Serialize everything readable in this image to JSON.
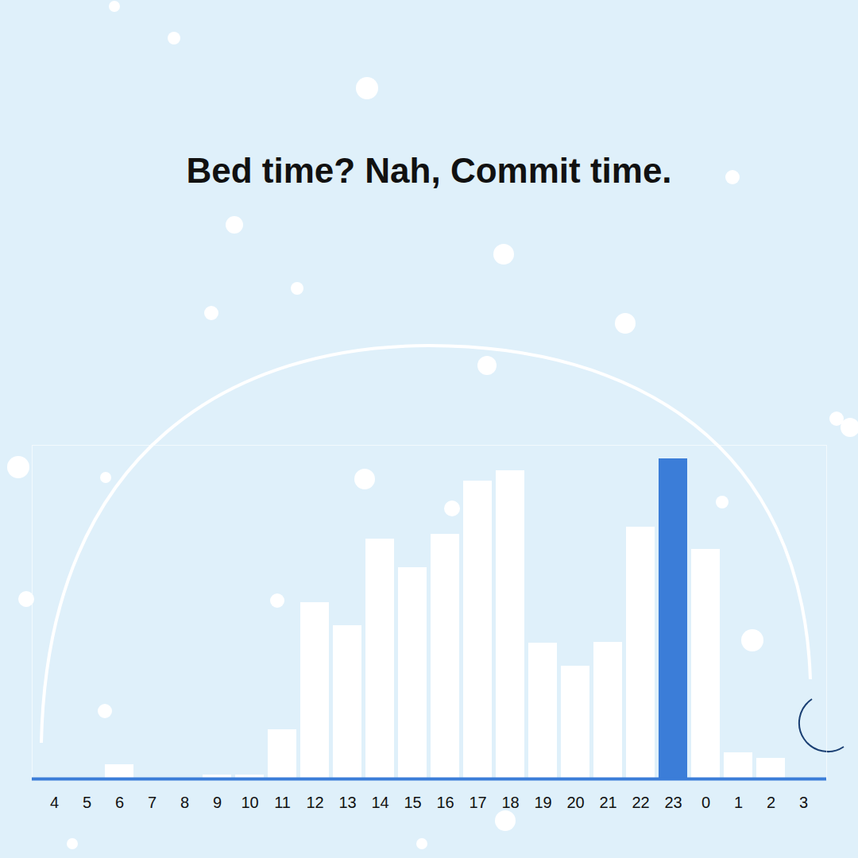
{
  "chart_data": {
    "type": "bar",
    "title": "Bed time? Nah, Commit time.",
    "categories": [
      4,
      5,
      6,
      7,
      8,
      9,
      10,
      11,
      12,
      13,
      14,
      15,
      16,
      17,
      18,
      19,
      20,
      21,
      22,
      23,
      0,
      1,
      2,
      3
    ],
    "values": [
      0,
      0,
      18,
      0,
      0,
      5,
      5,
      62,
      222,
      193,
      302,
      266,
      308,
      375,
      388,
      171,
      142,
      172,
      317,
      403,
      289,
      33,
      26,
      0
    ],
    "colors": [
      "#ffffff",
      "#ffffff",
      "#ffffff",
      "#ffffff",
      "#ffffff",
      "#ffffff",
      "#ffffff",
      "#ffffff",
      "#ffffff",
      "#ffffff",
      "#ffffff",
      "#ffffff",
      "#ffffff",
      "#ffffff",
      "#ffffff",
      "#ffffff",
      "#ffffff",
      "#ffffff",
      "#ffffff",
      "#3b7dd8",
      "#ffffff",
      "#ffffff",
      "#ffffff",
      "#ffffff"
    ],
    "ylim": [
      0,
      420
    ],
    "tick_labels": "x"
  }
}
